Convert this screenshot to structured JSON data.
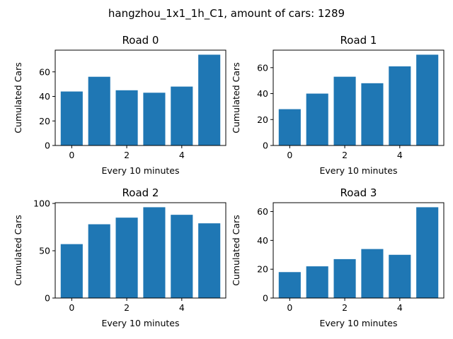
{
  "figure": {
    "title": "hangzhou_1x1_1h_C1, amount of cars: 1289"
  },
  "colors": {
    "bar": "#1f77b4",
    "axis": "#000000",
    "background": "#ffffff"
  },
  "chart_data": [
    {
      "type": "bar",
      "title": "Road 0",
      "xlabel": "Every 10 minutes",
      "ylabel": "Cumulated Cars",
      "x": [
        0,
        1,
        2,
        3,
        4,
        5
      ],
      "values": [
        44,
        56,
        45,
        43,
        48,
        74
      ],
      "xlim": [
        -0.6,
        5.6
      ],
      "ylim": [
        0,
        77.7
      ],
      "xticks": [
        0,
        2,
        4
      ],
      "yticks": [
        0,
        20,
        40,
        60
      ],
      "grid": false
    },
    {
      "type": "bar",
      "title": "Road 1",
      "xlabel": "Every 10 minutes",
      "ylabel": "Cumulated Cars",
      "x": [
        0,
        1,
        2,
        3,
        4,
        5
      ],
      "values": [
        28,
        40,
        53,
        48,
        61,
        70
      ],
      "xlim": [
        -0.6,
        5.6
      ],
      "ylim": [
        0,
        73.5
      ],
      "xticks": [
        0,
        2,
        4
      ],
      "yticks": [
        0,
        20,
        40,
        60
      ],
      "grid": false
    },
    {
      "type": "bar",
      "title": "Road 2",
      "xlabel": "Every 10 minutes",
      "ylabel": "Cumulated Cars",
      "x": [
        0,
        1,
        2,
        3,
        4,
        5
      ],
      "values": [
        57,
        78,
        85,
        96,
        88,
        79
      ],
      "xlim": [
        -0.6,
        5.6
      ],
      "ylim": [
        0,
        100.8
      ],
      "xticks": [
        0,
        2,
        4
      ],
      "yticks": [
        0,
        50,
        100
      ],
      "grid": false
    },
    {
      "type": "bar",
      "title": "Road 3",
      "xlabel": "Every 10 minutes",
      "ylabel": "Cumulated Cars",
      "x": [
        0,
        1,
        2,
        3,
        4,
        5
      ],
      "values": [
        18,
        22,
        27,
        34,
        30,
        63
      ],
      "xlim": [
        -0.6,
        5.6
      ],
      "ylim": [
        0,
        66.15
      ],
      "xticks": [
        0,
        2,
        4
      ],
      "yticks": [
        0,
        20,
        40,
        60
      ],
      "grid": false
    }
  ]
}
